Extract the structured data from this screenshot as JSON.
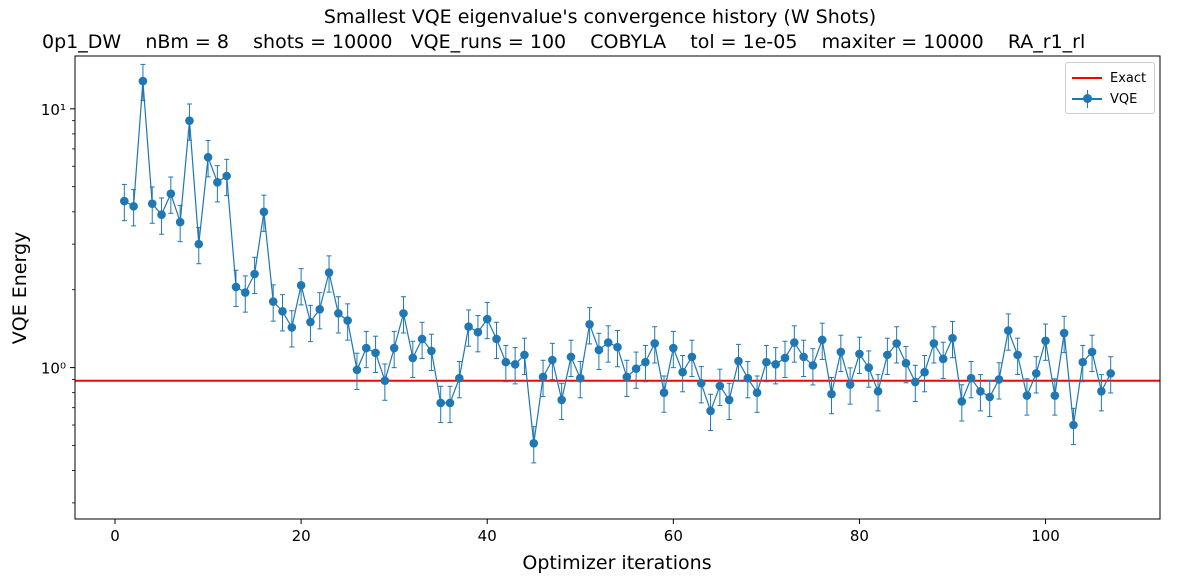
{
  "chart_data": {
    "type": "line",
    "title": "Smallest VQE eigenvalue's convergence history (W Shots)",
    "subtitle": "0p1_DW    nBm = 8    shots = 10000   VQE_runs = 100    COBYLA    tol = 1e-05    maxiter = 10000    RA_r1_rl",
    "xlabel": "Optimizer iterations",
    "ylabel": "VQE Energy",
    "yscale": "log",
    "xlim": [
      -4.3,
      112.3
    ],
    "ylim": [
      0.26,
      16
    ],
    "xticks": [
      0,
      20,
      40,
      60,
      80,
      100
    ],
    "yticks": [
      {
        "value": 1,
        "label": "10⁰"
      },
      {
        "value": 10,
        "label": "10¹"
      }
    ],
    "grid": false,
    "legend": {
      "position": "top-right",
      "entries": [
        "Exact",
        "VQE"
      ]
    },
    "colors": {
      "vqe": "#1f77b4",
      "exact": "#ff0000"
    },
    "series": [
      {
        "name": "Exact",
        "kind": "hline",
        "y": 0.89
      },
      {
        "name": "VQE",
        "kind": "errorbar",
        "x": [
          1,
          2,
          3,
          4,
          5,
          6,
          7,
          8,
          9,
          10,
          11,
          12,
          13,
          14,
          15,
          16,
          17,
          18,
          19,
          20,
          21,
          22,
          23,
          24,
          25,
          26,
          27,
          28,
          29,
          30,
          31,
          32,
          33,
          34,
          35,
          36,
          37,
          38,
          39,
          40,
          41,
          42,
          43,
          44,
          45,
          46,
          47,
          48,
          49,
          50,
          51,
          52,
          53,
          54,
          55,
          56,
          57,
          58,
          59,
          60,
          61,
          62,
          63,
          64,
          65,
          66,
          67,
          68,
          69,
          70,
          71,
          72,
          73,
          74,
          75,
          76,
          77,
          78,
          79,
          80,
          81,
          82,
          83,
          84,
          85,
          86,
          87,
          88,
          89,
          90,
          91,
          92,
          93,
          94,
          95,
          96,
          97,
          98,
          99,
          100,
          101,
          102,
          103,
          104,
          105,
          106,
          107
        ],
        "values": [
          4.4,
          4.2,
          12.8,
          4.3,
          3.9,
          4.7,
          3.65,
          9.0,
          3.0,
          6.5,
          5.2,
          5.5,
          2.05,
          1.95,
          2.3,
          4.0,
          1.8,
          1.65,
          1.43,
          2.08,
          1.5,
          1.68,
          2.33,
          1.62,
          1.52,
          0.98,
          1.19,
          1.14,
          0.89,
          1.19,
          1.62,
          1.09,
          1.29,
          1.16,
          0.73,
          0.73,
          0.91,
          1.44,
          1.37,
          1.54,
          1.29,
          1.05,
          1.03,
          1.12,
          0.51,
          0.92,
          1.07,
          0.75,
          1.1,
          0.91,
          1.47,
          1.17,
          1.25,
          1.2,
          0.92,
          0.99,
          1.05,
          1.24,
          0.8,
          1.19,
          0.96,
          1.1,
          0.87,
          0.68,
          0.85,
          0.75,
          1.06,
          0.91,
          0.8,
          1.05,
          1.03,
          1.09,
          1.25,
          1.1,
          1.02,
          1.28,
          0.79,
          1.15,
          0.86,
          1.13,
          1.0,
          0.81,
          1.12,
          1.24,
          1.04,
          0.88,
          0.96,
          1.24,
          1.08,
          1.3,
          0.74,
          0.91,
          0.81,
          0.77,
          0.9,
          1.39,
          1.12,
          0.78,
          0.95,
          1.27,
          0.78,
          1.36,
          0.6,
          1.05,
          1.15,
          0.81,
          0.95
        ],
        "err_frac": 0.16
      }
    ]
  }
}
